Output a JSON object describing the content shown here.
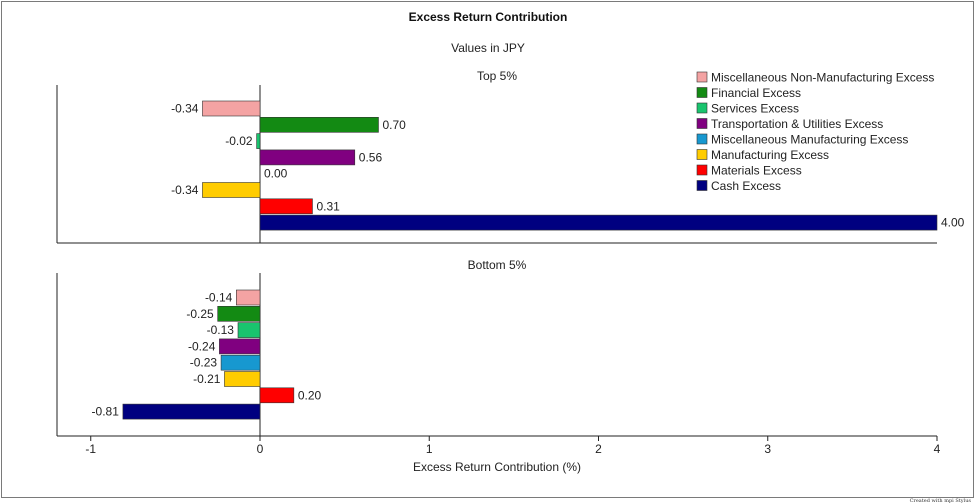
{
  "title": "Excess Return Contribution",
  "subtitle": "Values in JPY",
  "xlabel": "Excess Return Contribution (%)",
  "footer": "Created with mpi Stylus",
  "chart_data": {
    "type": "bar",
    "orientation": "horizontal",
    "title": "Excess Return Contribution",
    "subtitle": "Values in JPY",
    "xlabel": "Excess Return Contribution (%)",
    "xlim": [
      -1.2,
      4.0
    ],
    "xticks": [
      -1,
      0,
      1,
      2,
      3,
      4
    ],
    "legend_position": "top-right",
    "categories": [
      "Miscellaneous Non-Manufacturing Excess",
      "Financial Excess",
      "Services Excess",
      "Transportation & Utilities Excess",
      "Miscellaneous Manufacturing Excess",
      "Manufacturing Excess",
      "Materials Excess",
      "Cash Excess"
    ],
    "colors": [
      "#f4a3a3",
      "#138a13",
      "#19c46e",
      "#800080",
      "#1798d0",
      "#ffcc00",
      "#ff0000",
      "#000080"
    ],
    "panels": [
      {
        "name": "Top 5%",
        "values": [
          -0.34,
          0.7,
          -0.02,
          0.56,
          0.0,
          -0.34,
          0.31,
          4.0
        ],
        "labels": [
          "-0.34",
          "0.70",
          "-0.02",
          "0.56",
          "0.00",
          "-0.34",
          "0.31",
          "4.00"
        ]
      },
      {
        "name": "Bottom 5%",
        "values": [
          -0.14,
          -0.25,
          -0.13,
          -0.24,
          -0.23,
          -0.21,
          0.2,
          -0.81
        ],
        "labels": [
          "-0.14",
          "-0.25",
          "-0.13",
          "-0.24",
          "-0.23",
          "-0.21",
          "0.20",
          "-0.81"
        ]
      }
    ]
  }
}
